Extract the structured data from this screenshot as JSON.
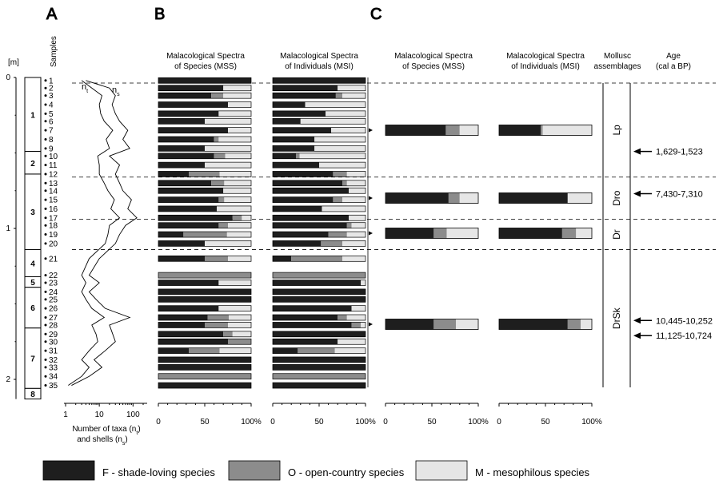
{
  "panels": {
    "a": "A",
    "b": "B",
    "c": "C"
  },
  "depth_axis": {
    "unit": "[m]",
    "ticks": [
      "0",
      "1",
      "2"
    ],
    "samples_label": "Samples"
  },
  "samples": [
    "1",
    "2",
    "3",
    "4",
    "5",
    "6",
    "7",
    "8",
    "9",
    "10",
    "11",
    "12",
    "13",
    "14",
    "15",
    "16",
    "17",
    "18",
    "19",
    "20",
    "21",
    "22",
    "23",
    "24",
    "25",
    "26",
    "27",
    "28",
    "29",
    "30",
    "31",
    "32",
    "33",
    "34",
    "35"
  ],
  "sample_depths": [
    0.02,
    0.07,
    0.12,
    0.18,
    0.24,
    0.29,
    0.35,
    0.41,
    0.47,
    0.52,
    0.58,
    0.64,
    0.7,
    0.75,
    0.81,
    0.87,
    0.93,
    0.98,
    1.04,
    1.1,
    1.2,
    1.31,
    1.36,
    1.42,
    1.47,
    1.53,
    1.59,
    1.64,
    1.7,
    1.75,
    1.81,
    1.87,
    1.92,
    1.98,
    2.04
  ],
  "zones": [
    {
      "label": "1",
      "top": 0.0,
      "bottom": 0.49
    },
    {
      "label": "2",
      "top": 0.49,
      "bottom": 0.64
    },
    {
      "label": "3",
      "top": 0.64,
      "bottom": 1.14
    },
    {
      "label": "4",
      "top": 1.14,
      "bottom": 1.32
    },
    {
      "label": "5",
      "top": 1.32,
      "bottom": 1.39
    },
    {
      "label": "6",
      "top": 1.39,
      "bottom": 1.66
    },
    {
      "label": "7",
      "top": 1.66,
      "bottom": 2.06
    },
    {
      "label": "8",
      "top": 2.06,
      "bottom": 2.13
    }
  ],
  "taxa_chart": {
    "series": [
      {
        "name": "nt"
      },
      {
        "name": "ns"
      }
    ],
    "xlabel_line1": "Number of taxa (n",
    "xlabel_sub1": "t",
    "xlabel_line1_end": ")",
    "xlabel_line2": "and shells (n",
    "xlabel_sub2": "s",
    "xlabel_line2_end": ")",
    "ticks": [
      "1",
      "10",
      "100"
    ],
    "xlim": [
      1,
      200
    ]
  },
  "chart_data": [
    {
      "type": "line",
      "x_scale": "log",
      "y": "depth (m)",
      "depths": [
        0.02,
        0.07,
        0.12,
        0.18,
        0.24,
        0.29,
        0.35,
        0.41,
        0.47,
        0.52,
        0.58,
        0.64,
        0.7,
        0.75,
        0.81,
        0.87,
        0.93,
        0.98,
        1.04,
        1.1,
        1.2,
        1.31,
        1.36,
        1.42,
        1.47,
        1.53,
        1.59,
        1.64,
        1.7,
        1.75,
        1.81,
        1.87,
        1.92,
        1.98,
        2.04
      ],
      "series": [
        {
          "name": "nt",
          "values": [
            3,
            6,
            12,
            10,
            11,
            14,
            25,
            16,
            20,
            9,
            10,
            10,
            14,
            18,
            28,
            22,
            40,
            20,
            18,
            15,
            5,
            3,
            4,
            3,
            4,
            6,
            14,
            6,
            8,
            9,
            5,
            3,
            5,
            3,
            1.2
          ]
        },
        {
          "name": "ns",
          "values": [
            4,
            20,
            30,
            24,
            30,
            40,
            70,
            50,
            80,
            20,
            40,
            30,
            40,
            50,
            90,
            70,
            130,
            60,
            40,
            30,
            10,
            5,
            10,
            5,
            8,
            15,
            80,
            20,
            25,
            30,
            15,
            7,
            12,
            5,
            1.5
          ]
        }
      ],
      "xlim": [
        1,
        200
      ]
    },
    {
      "type": "bar",
      "title": "Malacological Spectra of Species (MSS)",
      "stacked": true,
      "categories": [
        "1",
        "2",
        "3",
        "4",
        "5",
        "6",
        "7",
        "8",
        "9",
        "10",
        "11",
        "12",
        "13",
        "14",
        "15",
        "16",
        "17",
        "18",
        "19",
        "20",
        "21",
        "22",
        "23",
        "24",
        "25",
        "26",
        "27",
        "28",
        "29",
        "30",
        "31",
        "32",
        "33",
        "34",
        "35"
      ],
      "series": [
        {
          "name": "F - shade-loving species",
          "values": [
            100,
            70,
            57,
            75,
            65,
            50,
            75,
            60,
            50,
            60,
            50,
            33,
            57,
            70,
            65,
            63,
            80,
            65,
            27,
            50,
            50,
            0,
            65,
            100,
            100,
            65,
            53,
            50,
            70,
            75,
            33,
            100,
            100,
            0,
            100
          ]
        },
        {
          "name": "O - open-country species",
          "values": [
            0,
            0,
            13,
            0,
            0,
            0,
            0,
            5,
            0,
            12,
            0,
            33,
            14,
            0,
            6,
            0,
            10,
            10,
            47,
            0,
            25,
            100,
            0,
            0,
            0,
            0,
            23,
            25,
            10,
            25,
            33,
            0,
            0,
            100,
            0
          ]
        },
        {
          "name": "M - mesophilous species",
          "values": [
            0,
            30,
            30,
            25,
            35,
            50,
            25,
            35,
            50,
            28,
            50,
            34,
            29,
            30,
            29,
            37,
            10,
            25,
            26,
            50,
            25,
            0,
            35,
            0,
            0,
            35,
            24,
            25,
            20,
            0,
            34,
            0,
            0,
            0,
            0
          ]
        }
      ],
      "ylim": [
        0,
        100
      ]
    },
    {
      "type": "bar",
      "title": "Malacological Spectra of Individuals (MSI)",
      "stacked": true,
      "categories": [
        "1",
        "2",
        "3",
        "4",
        "5",
        "6",
        "7",
        "8",
        "9",
        "10",
        "11",
        "12",
        "13",
        "14",
        "15",
        "16",
        "17",
        "18",
        "19",
        "20",
        "21",
        "22",
        "23",
        "24",
        "25",
        "26",
        "27",
        "28",
        "29",
        "30",
        "31",
        "32",
        "33",
        "34",
        "35"
      ],
      "series": [
        {
          "name": "F - shade-loving species",
          "values": [
            100,
            70,
            68,
            35,
            57,
            30,
            63,
            45,
            45,
            25,
            50,
            65,
            75,
            82,
            65,
            53,
            82,
            80,
            60,
            52,
            20,
            0,
            95,
            100,
            100,
            85,
            70,
            85,
            100,
            70,
            27,
            100,
            100,
            0,
            100
          ]
        },
        {
          "name": "O - open-country species",
          "values": [
            0,
            0,
            7,
            0,
            0,
            0,
            0,
            0,
            0,
            4,
            0,
            15,
            5,
            0,
            10,
            0,
            0,
            5,
            20,
            23,
            55,
            100,
            0,
            0,
            0,
            0,
            10,
            10,
            0,
            0,
            40,
            0,
            0,
            100,
            0
          ]
        },
        {
          "name": "M - mesophilous species",
          "values": [
            0,
            30,
            25,
            65,
            43,
            70,
            37,
            55,
            55,
            71,
            50,
            20,
            20,
            18,
            25,
            47,
            18,
            15,
            20,
            25,
            25,
            0,
            5,
            0,
            0,
            15,
            20,
            5,
            0,
            30,
            33,
            0,
            0,
            0,
            0
          ]
        }
      ],
      "ylim": [
        0,
        100
      ]
    },
    {
      "type": "bar",
      "title": "Malacological Spectra of Species (MSS)",
      "stacked": true,
      "categories": [
        "Lp",
        "Dro",
        "Dr",
        "DrSk"
      ],
      "series": [
        {
          "name": "F - shade-loving species",
          "values": [
            65,
            68,
            52,
            52
          ]
        },
        {
          "name": "O - open-country species",
          "values": [
            15,
            12,
            14,
            24
          ]
        },
        {
          "name": "M - mesophilous species",
          "values": [
            20,
            20,
            34,
            24
          ]
        }
      ],
      "ylim": [
        0,
        100
      ]
    },
    {
      "type": "bar",
      "title": "Malacological Spectra of Individuals (MSI)",
      "stacked": true,
      "categories": [
        "Lp",
        "Dro",
        "Dr",
        "DrSk"
      ],
      "series": [
        {
          "name": "F - shade-loving species",
          "values": [
            45,
            74,
            68,
            74
          ]
        },
        {
          "name": "O - open-country species",
          "values": [
            2,
            0,
            15,
            14
          ]
        },
        {
          "name": "M - mesophilous species",
          "values": [
            53,
            26,
            17,
            12
          ]
        }
      ],
      "ylim": [
        0,
        100
      ]
    }
  ],
  "bar_axis_ticks": [
    "0",
    "50",
    "100%"
  ],
  "headers": {
    "mss_b_l1": "Malacological Spectra",
    "mss_b_l2": "of Species (MSS)",
    "msi_b_l1": "Malacological Spectra",
    "msi_b_l2": "of Individuals (MSI)",
    "mss_c_l1": "Malacological Spectra",
    "mss_c_l2": "of Species (MSS)",
    "msi_c_l1": "Malacological Spectra",
    "msi_c_l2": "of Individuals (MSI)",
    "mollusc_l1": "Mollusc",
    "mollusc_l2": "assemblages",
    "age_l1": "Age",
    "age_l2": "(cal a BP)"
  },
  "assemblages": [
    {
      "label": "Lp",
      "top": 0.0,
      "bottom": 0.66
    },
    {
      "label": "Dro",
      "top": 0.66,
      "bottom": 0.94
    },
    {
      "label": "Dr",
      "top": 0.94,
      "bottom": 1.14
    },
    {
      "label": "DrSk",
      "top": 1.14,
      "bottom": 2.06
    }
  ],
  "ages": [
    {
      "label": "1,629-1,523",
      "depth": 0.49
    },
    {
      "label": "7,430-7,310",
      "depth": 0.77
    },
    {
      "label": "10,445-10,252",
      "depth": 1.61
    },
    {
      "label": "11,125-10,724",
      "depth": 1.71
    }
  ],
  "legend": [
    {
      "label": "F - shade-loving species",
      "color": "#1e1e1e"
    },
    {
      "label": "O - open-country species",
      "color": "#8c8c8c"
    },
    {
      "label": "M - mesophilous species",
      "color": "#e6e6e6"
    }
  ],
  "colors": {
    "F": "#1e1e1e",
    "O": "#8c8c8c",
    "M": "#e6e6e6"
  }
}
